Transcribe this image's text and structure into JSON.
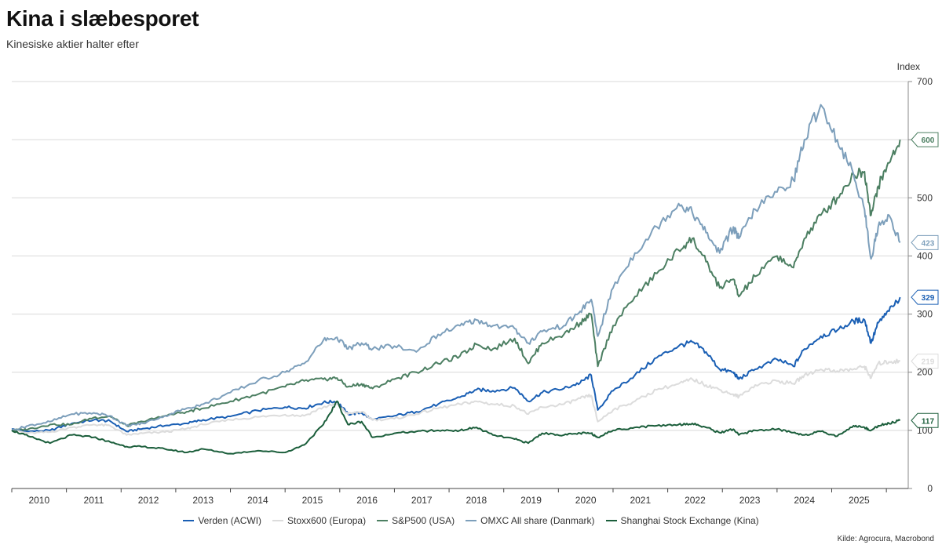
{
  "title": "Kina i slæbesporet",
  "subtitle": "Kinesiske aktier halter efter",
  "source": "Kilde: Agrocura, Macrobond",
  "chart_data": {
    "type": "line",
    "ylabel": "Index",
    "ylim": [
      0,
      700
    ],
    "yticks": [
      0,
      100,
      200,
      300,
      400,
      500,
      600,
      700
    ],
    "xlim": [
      2009.5,
      2025.9
    ],
    "xtick_labels": [
      "2010",
      "2011",
      "2012",
      "2013",
      "2014",
      "2015",
      "2016",
      "2017",
      "2018",
      "2019",
      "2020",
      "2021",
      "2022",
      "2023",
      "2024",
      "2025"
    ],
    "grid": true,
    "legend_position": "bottom",
    "series": [
      {
        "name": "Verden (ACWI)",
        "color": "#1a5fb4",
        "end_label": "329",
        "width": 2,
        "points": [
          [
            2009.5,
            102
          ],
          [
            2009.8,
            98
          ],
          [
            2010.2,
            100
          ],
          [
            2010.6,
            112
          ],
          [
            2011.0,
            118
          ],
          [
            2011.3,
            116
          ],
          [
            2011.6,
            98
          ],
          [
            2011.9,
            103
          ],
          [
            2012.3,
            108
          ],
          [
            2012.7,
            112
          ],
          [
            2013.0,
            118
          ],
          [
            2013.5,
            124
          ],
          [
            2014.0,
            134
          ],
          [
            2014.5,
            140
          ],
          [
            2014.85,
            138
          ],
          [
            2015.2,
            148
          ],
          [
            2015.45,
            150
          ],
          [
            2015.65,
            128
          ],
          [
            2015.9,
            130
          ],
          [
            2016.1,
            118
          ],
          [
            2016.5,
            125
          ],
          [
            2016.9,
            132
          ],
          [
            2017.3,
            145
          ],
          [
            2017.7,
            157
          ],
          [
            2018.0,
            170
          ],
          [
            2018.3,
            168
          ],
          [
            2018.7,
            173
          ],
          [
            2018.95,
            150
          ],
          [
            2019.2,
            165
          ],
          [
            2019.6,
            172
          ],
          [
            2019.9,
            182
          ],
          [
            2020.1,
            195
          ],
          [
            2020.22,
            135
          ],
          [
            2020.5,
            168
          ],
          [
            2020.9,
            195
          ],
          [
            2021.3,
            225
          ],
          [
            2021.7,
            245
          ],
          [
            2021.95,
            252
          ],
          [
            2022.2,
            235
          ],
          [
            2022.45,
            205
          ],
          [
            2022.7,
            200
          ],
          [
            2022.8,
            188
          ],
          [
            2023.1,
            205
          ],
          [
            2023.5,
            222
          ],
          [
            2023.8,
            210
          ],
          [
            2024.0,
            240
          ],
          [
            2024.3,
            262
          ],
          [
            2024.6,
            272
          ],
          [
            2024.9,
            288
          ],
          [
            2025.1,
            290
          ],
          [
            2025.22,
            250
          ],
          [
            2025.35,
            285
          ],
          [
            2025.55,
            305
          ],
          [
            2025.75,
            329
          ]
        ]
      },
      {
        "name": "Stoxx600 (Europa)",
        "color": "#dcdcdc",
        "end_label": "219",
        "width": 2,
        "points": [
          [
            2009.5,
            100
          ],
          [
            2009.8,
            95
          ],
          [
            2010.2,
            97
          ],
          [
            2010.6,
            105
          ],
          [
            2011.0,
            110
          ],
          [
            2011.3,
            108
          ],
          [
            2011.6,
            92
          ],
          [
            2011.9,
            95
          ],
          [
            2012.3,
            97
          ],
          [
            2012.7,
            103
          ],
          [
            2013.0,
            110
          ],
          [
            2013.5,
            118
          ],
          [
            2014.0,
            123
          ],
          [
            2014.5,
            127
          ],
          [
            2014.85,
            125
          ],
          [
            2015.2,
            140
          ],
          [
            2015.45,
            145
          ],
          [
            2015.65,
            128
          ],
          [
            2015.9,
            132
          ],
          [
            2016.1,
            118
          ],
          [
            2016.5,
            120
          ],
          [
            2016.9,
            128
          ],
          [
            2017.3,
            138
          ],
          [
            2017.7,
            145
          ],
          [
            2018.0,
            150
          ],
          [
            2018.3,
            145
          ],
          [
            2018.7,
            142
          ],
          [
            2018.95,
            128
          ],
          [
            2019.2,
            140
          ],
          [
            2019.6,
            145
          ],
          [
            2019.9,
            155
          ],
          [
            2020.1,
            160
          ],
          [
            2020.22,
            115
          ],
          [
            2020.5,
            135
          ],
          [
            2020.9,
            150
          ],
          [
            2021.3,
            170
          ],
          [
            2021.7,
            180
          ],
          [
            2021.95,
            188
          ],
          [
            2022.2,
            178
          ],
          [
            2022.45,
            170
          ],
          [
            2022.7,
            162
          ],
          [
            2022.8,
            158
          ],
          [
            2023.1,
            178
          ],
          [
            2023.5,
            185
          ],
          [
            2023.8,
            180
          ],
          [
            2024.0,
            195
          ],
          [
            2024.3,
            205
          ],
          [
            2024.6,
            202
          ],
          [
            2024.9,
            205
          ],
          [
            2025.1,
            210
          ],
          [
            2025.22,
            190
          ],
          [
            2025.35,
            215
          ],
          [
            2025.55,
            218
          ],
          [
            2025.75,
            219
          ]
        ]
      },
      {
        "name": "S&P500 (USA)",
        "color": "#4c7f62",
        "end_label": "600",
        "width": 2,
        "points": [
          [
            2009.5,
            100
          ],
          [
            2009.8,
            102
          ],
          [
            2010.2,
            110
          ],
          [
            2010.6,
            110
          ],
          [
            2011.0,
            122
          ],
          [
            2011.3,
            124
          ],
          [
            2011.6,
            108
          ],
          [
            2011.9,
            115
          ],
          [
            2012.3,
            125
          ],
          [
            2012.7,
            132
          ],
          [
            2013.0,
            138
          ],
          [
            2013.5,
            150
          ],
          [
            2014.0,
            162
          ],
          [
            2014.5,
            175
          ],
          [
            2014.85,
            185
          ],
          [
            2015.2,
            188
          ],
          [
            2015.45,
            190
          ],
          [
            2015.65,
            175
          ],
          [
            2015.9,
            180
          ],
          [
            2016.1,
            172
          ],
          [
            2016.5,
            188
          ],
          [
            2016.9,
            200
          ],
          [
            2017.3,
            215
          ],
          [
            2017.7,
            228
          ],
          [
            2018.0,
            248
          ],
          [
            2018.3,
            240
          ],
          [
            2018.7,
            258
          ],
          [
            2018.95,
            215
          ],
          [
            2019.2,
            250
          ],
          [
            2019.6,
            265
          ],
          [
            2019.9,
            285
          ],
          [
            2020.1,
            300
          ],
          [
            2020.22,
            210
          ],
          [
            2020.5,
            280
          ],
          [
            2020.9,
            330
          ],
          [
            2021.3,
            370
          ],
          [
            2021.7,
            410
          ],
          [
            2021.95,
            430
          ],
          [
            2022.2,
            390
          ],
          [
            2022.45,
            345
          ],
          [
            2022.7,
            360
          ],
          [
            2022.8,
            330
          ],
          [
            2023.1,
            365
          ],
          [
            2023.5,
            400
          ],
          [
            2023.8,
            380
          ],
          [
            2024.0,
            430
          ],
          [
            2024.3,
            470
          ],
          [
            2024.6,
            500
          ],
          [
            2024.9,
            540
          ],
          [
            2025.1,
            545
          ],
          [
            2025.22,
            470
          ],
          [
            2025.35,
            520
          ],
          [
            2025.55,
            560
          ],
          [
            2025.75,
            600
          ]
        ]
      },
      {
        "name": "OMXC All share (Danmark)",
        "color": "#7d9fbb",
        "end_label": "423",
        "width": 2,
        "points": [
          [
            2009.5,
            100
          ],
          [
            2009.8,
            108
          ],
          [
            2010.2,
            115
          ],
          [
            2010.6,
            128
          ],
          [
            2011.0,
            130
          ],
          [
            2011.3,
            125
          ],
          [
            2011.6,
            108
          ],
          [
            2011.9,
            112
          ],
          [
            2012.3,
            125
          ],
          [
            2012.7,
            138
          ],
          [
            2013.0,
            145
          ],
          [
            2013.5,
            165
          ],
          [
            2014.0,
            185
          ],
          [
            2014.5,
            200
          ],
          [
            2014.85,
            215
          ],
          [
            2015.2,
            255
          ],
          [
            2015.45,
            260
          ],
          [
            2015.65,
            240
          ],
          [
            2015.9,
            250
          ],
          [
            2016.1,
            240
          ],
          [
            2016.5,
            245
          ],
          [
            2016.9,
            235
          ],
          [
            2017.3,
            265
          ],
          [
            2017.7,
            280
          ],
          [
            2018.0,
            290
          ],
          [
            2018.3,
            280
          ],
          [
            2018.7,
            275
          ],
          [
            2018.95,
            250
          ],
          [
            2019.2,
            270
          ],
          [
            2019.6,
            280
          ],
          [
            2019.9,
            305
          ],
          [
            2020.1,
            325
          ],
          [
            2020.22,
            262
          ],
          [
            2020.5,
            345
          ],
          [
            2020.9,
            405
          ],
          [
            2021.3,
            450
          ],
          [
            2021.7,
            490
          ],
          [
            2021.95,
            475
          ],
          [
            2022.2,
            440
          ],
          [
            2022.45,
            405
          ],
          [
            2022.7,
            450
          ],
          [
            2022.8,
            430
          ],
          [
            2023.1,
            480
          ],
          [
            2023.5,
            510
          ],
          [
            2023.8,
            530
          ],
          [
            2024.0,
            600
          ],
          [
            2024.3,
            660
          ],
          [
            2024.6,
            600
          ],
          [
            2024.9,
            540
          ],
          [
            2025.1,
            480
          ],
          [
            2025.22,
            395
          ],
          [
            2025.35,
            450
          ],
          [
            2025.55,
            470
          ],
          [
            2025.75,
            423
          ]
        ]
      },
      {
        "name": "Shanghai Stock Exchange (Kina)",
        "color": "#1b5e3b",
        "end_label": "117",
        "width": 2,
        "points": [
          [
            2009.5,
            100
          ],
          [
            2009.8,
            90
          ],
          [
            2010.2,
            78
          ],
          [
            2010.6,
            92
          ],
          [
            2011.0,
            88
          ],
          [
            2011.3,
            80
          ],
          [
            2011.6,
            72
          ],
          [
            2011.9,
            72
          ],
          [
            2012.3,
            68
          ],
          [
            2012.7,
            62
          ],
          [
            2013.0,
            68
          ],
          [
            2013.5,
            60
          ],
          [
            2014.0,
            65
          ],
          [
            2014.5,
            62
          ],
          [
            2014.85,
            75
          ],
          [
            2015.2,
            110
          ],
          [
            2015.45,
            150
          ],
          [
            2015.65,
            110
          ],
          [
            2015.9,
            115
          ],
          [
            2016.1,
            88
          ],
          [
            2016.5,
            95
          ],
          [
            2016.9,
            98
          ],
          [
            2017.3,
            100
          ],
          [
            2017.7,
            100
          ],
          [
            2018.0,
            105
          ],
          [
            2018.3,
            92
          ],
          [
            2018.7,
            85
          ],
          [
            2018.95,
            78
          ],
          [
            2019.2,
            95
          ],
          [
            2019.6,
            92
          ],
          [
            2019.9,
            95
          ],
          [
            2020.1,
            95
          ],
          [
            2020.22,
            88
          ],
          [
            2020.5,
            100
          ],
          [
            2020.9,
            105
          ],
          [
            2021.3,
            108
          ],
          [
            2021.7,
            110
          ],
          [
            2021.95,
            112
          ],
          [
            2022.2,
            105
          ],
          [
            2022.45,
            96
          ],
          [
            2022.7,
            102
          ],
          [
            2022.8,
            92
          ],
          [
            2023.1,
            100
          ],
          [
            2023.5,
            102
          ],
          [
            2023.8,
            96
          ],
          [
            2024.0,
            92
          ],
          [
            2024.3,
            98
          ],
          [
            2024.6,
            90
          ],
          [
            2024.9,
            108
          ],
          [
            2025.1,
            105
          ],
          [
            2025.22,
            100
          ],
          [
            2025.35,
            108
          ],
          [
            2025.55,
            112
          ],
          [
            2025.75,
            117
          ]
        ]
      }
    ]
  }
}
